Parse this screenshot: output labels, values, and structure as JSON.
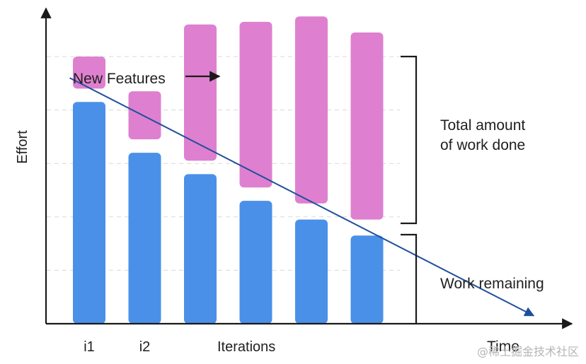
{
  "chart_data": {
    "type": "bar",
    "xlabel": "Time",
    "ylabel": "Effort",
    "axis_caption": "Iterations",
    "categories": [
      "i1",
      "i2",
      "",
      "",
      "",
      ""
    ],
    "ylim": [
      0,
      10
    ],
    "grid": true,
    "series": [
      {
        "name": "Work remaining",
        "color": "#4a90e8",
        "values": [
          8.3,
          6.4,
          5.6,
          4.6,
          3.9,
          3.3
        ]
      },
      {
        "name": "New Features",
        "color": "#de80cf",
        "gap_above_remaining": [
          0.5,
          0.5,
          0.5,
          0.5,
          0.6,
          0.6
        ],
        "values": [
          1.2,
          1.8,
          5.1,
          6.2,
          7.0,
          7.0
        ]
      }
    ],
    "annotations": {
      "new_features": "New Features",
      "total_line1": "Total amount",
      "total_line2": "of work done",
      "work_remaining": "Work remaining"
    },
    "trend_line": {
      "x_start": -0.35,
      "y_start": 9.2,
      "x_end": 8.0,
      "y_end": 0.3
    }
  },
  "watermark": "@稀土掘金技术社区"
}
